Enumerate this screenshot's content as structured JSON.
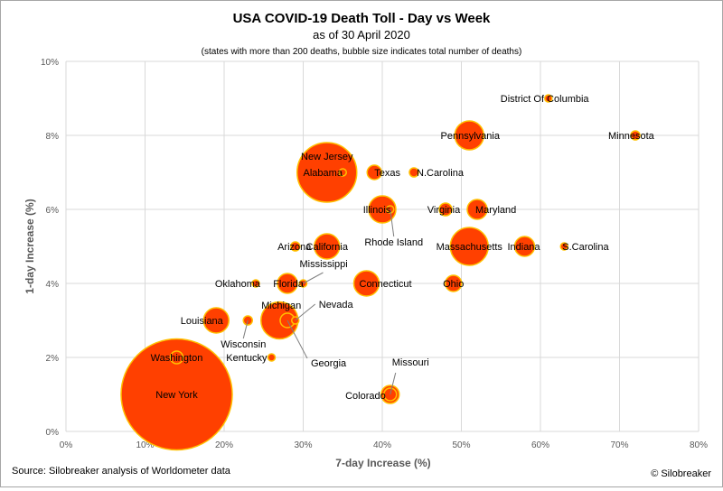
{
  "chart_data": {
    "type": "scatter",
    "title": "USA COVID-19 Death Toll - Day vs Week",
    "subtitle": "as of 30 April 2020",
    "note": "(states with more than 200 deaths, bubble size indicates total number of deaths)",
    "xlabel": "7-day Increase (%)",
    "ylabel": "1-day Increase (%)",
    "xlim": [
      0,
      80
    ],
    "ylim": [
      0,
      10
    ],
    "x_ticks": [
      0,
      10,
      20,
      30,
      40,
      50,
      60,
      70,
      80
    ],
    "y_ticks": [
      0,
      2,
      4,
      6,
      8,
      10
    ],
    "x_tick_labels": [
      "0%",
      "10%",
      "20%",
      "30%",
      "40%",
      "50%",
      "60%",
      "70%",
      "80%"
    ],
    "y_tick_labels": [
      "0%",
      "2%",
      "4%",
      "6%",
      "8%",
      "10%"
    ],
    "grid": true,
    "bubble_color": "#ff4000",
    "bubble_edge": "#ffc000",
    "points": [
      {
        "label": "New York",
        "x": 14,
        "y": 1,
        "size": 61.5
      },
      {
        "label": "Washington",
        "x": 14,
        "y": 2,
        "size": 7
      },
      {
        "label": "Louisiana",
        "x": 19,
        "y": 3,
        "size": 14
      },
      {
        "label": "Wisconsin",
        "x": 23,
        "y": 3,
        "size": 5
      },
      {
        "label": "Michigan",
        "x": 27,
        "y": 3,
        "size": 20.5
      },
      {
        "label": "Nevada",
        "x": 29,
        "y": 3,
        "size": 4
      },
      {
        "label": "Georgia",
        "x": 28,
        "y": 3,
        "size": 8
      },
      {
        "label": "Kentucky",
        "x": 26,
        "y": 2,
        "size": 4
      },
      {
        "label": "Oklahoma",
        "x": 24,
        "y": 4,
        "size": 4
      },
      {
        "label": "Florida",
        "x": 28,
        "y": 4,
        "size": 11
      },
      {
        "label": "Mississippi",
        "x": 30,
        "y": 4,
        "size": 4
      },
      {
        "label": "Connecticut",
        "x": 38,
        "y": 4,
        "size": 14
      },
      {
        "label": "Ohio",
        "x": 49,
        "y": 4,
        "size": 9
      },
      {
        "label": "Arizona",
        "x": 29,
        "y": 5,
        "size": 5
      },
      {
        "label": "California",
        "x": 33,
        "y": 5,
        "size": 14
      },
      {
        "label": "Massachusetts",
        "x": 51,
        "y": 5,
        "size": 21
      },
      {
        "label": "Indiana",
        "x": 58,
        "y": 5,
        "size": 11
      },
      {
        "label": "S.Carolina",
        "x": 63,
        "y": 5,
        "size": 4
      },
      {
        "label": "Illinois",
        "x": 40,
        "y": 6,
        "size": 15
      },
      {
        "label": "Rhode Island",
        "x": 41,
        "y": 6,
        "size": 4
      },
      {
        "label": "Virginia",
        "x": 48,
        "y": 6,
        "size": 7
      },
      {
        "label": "Maryland",
        "x": 52,
        "y": 6,
        "size": 11
      },
      {
        "label": "New Jersey",
        "x": 33,
        "y": 7,
        "size": 33
      },
      {
        "label": "Alabama",
        "x": 35,
        "y": 7,
        "size": 4
      },
      {
        "label": "Texas",
        "x": 39,
        "y": 7,
        "size": 8
      },
      {
        "label": "N.Carolina",
        "x": 44,
        "y": 7,
        "size": 5
      },
      {
        "label": "Pennsylvania",
        "x": 51,
        "y": 8,
        "size": 16
      },
      {
        "label": "District Of Columbia",
        "x": 61,
        "y": 9,
        "size": 4
      },
      {
        "label": "Minnesota",
        "x": 72,
        "y": 8,
        "size": 5
      },
      {
        "label": "Missouri",
        "x": 41,
        "y": 1,
        "size": 7
      },
      {
        "label": "Colorado",
        "x": 41,
        "y": 1,
        "size": 10
      }
    ]
  },
  "source": "Source: Silobreaker analysis of Worldometer data",
  "copyright": "© Silobreaker"
}
